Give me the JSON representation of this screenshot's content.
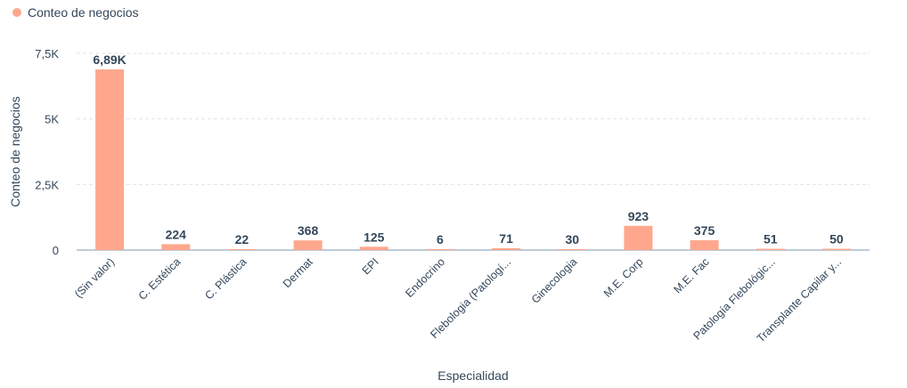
{
  "legend": {
    "label": "Conteo de negocios",
    "color": "#ffa78c"
  },
  "chart_data": {
    "type": "bar",
    "xlabel": "Especialidad",
    "ylabel": "Conteo de negocios",
    "ylim": [
      0,
      7500
    ],
    "yticks": [
      0,
      2500,
      5000,
      7500
    ],
    "ytick_labels": [
      "0",
      "2,5K",
      "5K",
      "7,5K"
    ],
    "grid": true,
    "legend_position": "top-left",
    "categories": [
      "(Sin valor)",
      "C. Estética",
      "C. Plástica",
      "Dermat",
      "EPI",
      "Endocrino",
      "Flebologia (Patologí...",
      "Ginecologia",
      "M.E. Corp",
      "M.E. Fac",
      "Patología Flebológic...",
      "Transplante Capilar y..."
    ],
    "series": [
      {
        "name": "Conteo de negocios",
        "color": "#ffa78c",
        "values": [
          6890,
          224,
          22,
          368,
          125,
          6,
          71,
          30,
          923,
          375,
          51,
          50
        ],
        "labels": [
          "6,89K",
          "224",
          "22",
          "368",
          "125",
          "6",
          "71",
          "30",
          "923",
          "375",
          "51",
          "50"
        ]
      }
    ]
  }
}
